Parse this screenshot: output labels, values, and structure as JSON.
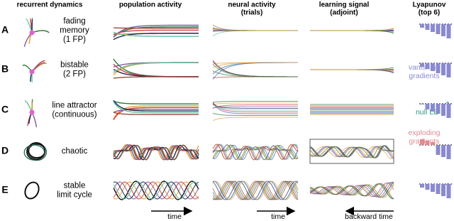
{
  "columns": [
    [
      "recurrent dynamics"
    ],
    [
      "population activity"
    ],
    [
      "neural activity",
      "(trials)"
    ],
    [
      "learning signal",
      "(adjoint)"
    ],
    [
      "Lyapunov",
      "(top 6)"
    ]
  ],
  "rows": [
    {
      "letter": "A",
      "label": [
        "fading",
        "memory",
        "(1 FP)"
      ]
    },
    {
      "letter": "B",
      "label": [
        "bistable",
        "(2 FP)"
      ]
    },
    {
      "letter": "C",
      "label": [
        "line attractor",
        "(continuous)"
      ]
    },
    {
      "letter": "D",
      "label": [
        "chaotic"
      ]
    },
    {
      "letter": "E",
      "label": [
        "stable",
        "limit cycle"
      ]
    }
  ],
  "annotations": {
    "vanishing": [
      "vanishing",
      "gradients"
    ],
    "null": "null LE",
    "exploding": [
      "exploding",
      "gradients"
    ],
    "dagger_c": "†",
    "dagger_e": "†",
    "time_pop": "time",
    "time_neural": "time",
    "backward": "backward time"
  }
}
